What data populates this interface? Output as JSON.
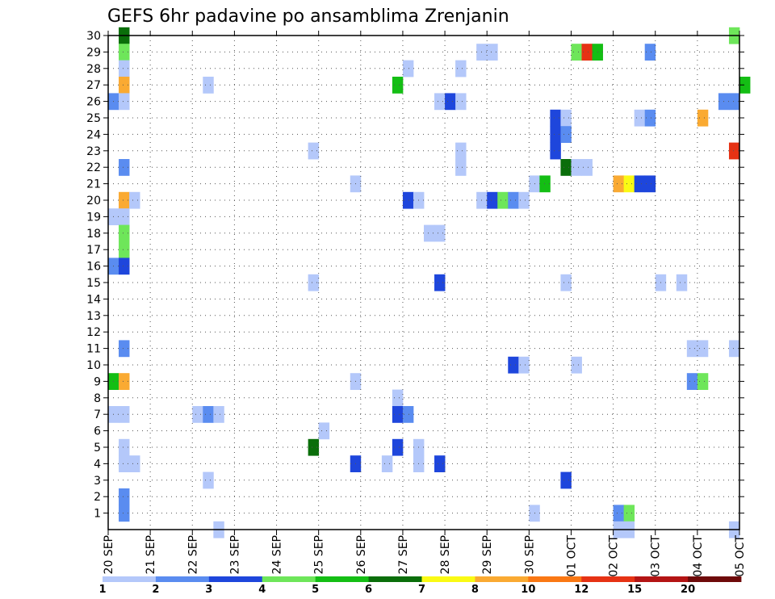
{
  "chart_data": {
    "type": "heatmap",
    "title": "GEFS 6hr padavine po ansamblima Zrenjanin",
    "x_tick_labels": [
      "20 SEP",
      "21 SEP",
      "22 SEP",
      "23 SEP",
      "24 SEP",
      "25 SEP",
      "26 SEP",
      "27 SEP",
      "28 SEP",
      "29 SEP",
      "30 SEP",
      "01 OCT",
      "02 OCT",
      "03 OCT",
      "04 OCT",
      "05 OCT"
    ],
    "x_range": [
      "20 SEP 00z",
      "05 OCT 00z"
    ],
    "x_step_hours": 6,
    "y_tick_labels": [
      "1",
      "2",
      "3",
      "4",
      "5",
      "6",
      "7",
      "8",
      "9",
      "10",
      "11",
      "12",
      "13",
      "14",
      "15",
      "16",
      "17",
      "18",
      "19",
      "20",
      "21",
      "22",
      "23",
      "24",
      "25",
      "26",
      "27",
      "28",
      "29",
      "30"
    ],
    "y_range": [
      0,
      30
    ],
    "grid": true,
    "colorbar": {
      "labels": [
        "1",
        "2",
        "3",
        "4",
        "5",
        "6",
        "7",
        "8",
        "10",
        "12",
        "15",
        "20"
      ],
      "colors": [
        "#b4c8fa",
        "#5a8cf0",
        "#1e46dc",
        "#6ee65a",
        "#14be14",
        "#0a6e0a",
        "#fafa14",
        "#faaa32",
        "#fa7814",
        "#e63214",
        "#b41414",
        "#6e0a0a"
      ]
    },
    "colors": {
      "cells": [
        "#b4c8fa",
        "#5a8cf0",
        "#1e46dc",
        "#6ee65a",
        "#14be14",
        "#0a6e0a",
        "#fafa14",
        "#faaa32",
        "#fa7814",
        "#e63214"
      ]
    },
    "cells": [
      {
        "t": 1,
        "m": 30,
        "c": 6
      },
      {
        "t": 1,
        "m": 29,
        "c": 4
      },
      {
        "t": 1,
        "m": 28,
        "c": 1
      },
      {
        "t": 1,
        "m": 27,
        "c": 8
      },
      {
        "t": 0,
        "m": 26,
        "c": 2
      },
      {
        "t": 1,
        "m": 26,
        "c": 1
      },
      {
        "t": 1,
        "m": 22,
        "c": 2
      },
      {
        "t": 1,
        "m": 20,
        "c": 8
      },
      {
        "t": 2,
        "m": 20,
        "c": 1
      },
      {
        "t": 0,
        "m": 19,
        "c": 1
      },
      {
        "t": 1,
        "m": 19,
        "c": 1
      },
      {
        "t": 1,
        "m": 18,
        "c": 4
      },
      {
        "t": 1,
        "m": 17,
        "c": 4
      },
      {
        "t": 0,
        "m": 16,
        "c": 2
      },
      {
        "t": 1,
        "m": 16,
        "c": 3
      },
      {
        "t": 1,
        "m": 11,
        "c": 2
      },
      {
        "t": 0,
        "m": 9,
        "c": 5
      },
      {
        "t": 1,
        "m": 9,
        "c": 8
      },
      {
        "t": 0,
        "m": 7,
        "c": 1
      },
      {
        "t": 1,
        "m": 7,
        "c": 1
      },
      {
        "t": 1,
        "m": 5,
        "c": 1
      },
      {
        "t": 1,
        "m": 4,
        "c": 1
      },
      {
        "t": 2,
        "m": 4,
        "c": 1
      },
      {
        "t": 1,
        "m": 2,
        "c": 2
      },
      {
        "t": 1,
        "m": 1,
        "c": 2
      },
      {
        "t": 9,
        "m": 27,
        "c": 1
      },
      {
        "t": 8,
        "m": 7,
        "c": 1
      },
      {
        "t": 9,
        "m": 7,
        "c": 2
      },
      {
        "t": 10,
        "m": 7,
        "c": 1
      },
      {
        "t": 9,
        "m": 3,
        "c": 1
      },
      {
        "t": 10,
        "m": 0,
        "c": 1
      },
      {
        "t": 19,
        "m": 5,
        "c": 6
      },
      {
        "t": 19,
        "m": 23,
        "c": 1
      },
      {
        "t": 19,
        "m": 15,
        "c": 1
      },
      {
        "t": 20,
        "m": 6,
        "c": 1
      },
      {
        "t": 23,
        "m": 21,
        "c": 1
      },
      {
        "t": 23,
        "m": 4,
        "c": 3
      },
      {
        "t": 23,
        "m": 9,
        "c": 1
      },
      {
        "t": 26,
        "m": 4,
        "c": 1
      },
      {
        "t": 27,
        "m": 27,
        "c": 5
      },
      {
        "t": 27,
        "m": 8,
        "c": 1
      },
      {
        "t": 27,
        "m": 5,
        "c": 3
      },
      {
        "t": 27,
        "m": 7,
        "c": 3
      },
      {
        "t": 28,
        "m": 7,
        "c": 2
      },
      {
        "t": 28,
        "m": 28,
        "c": 1
      },
      {
        "t": 28,
        "m": 20,
        "c": 3
      },
      {
        "t": 29,
        "m": 20,
        "c": 1
      },
      {
        "t": 29,
        "m": 5,
        "c": 1
      },
      {
        "t": 29,
        "m": 4,
        "c": 1
      },
      {
        "t": 30,
        "m": 18,
        "c": 1
      },
      {
        "t": 31,
        "m": 18,
        "c": 1
      },
      {
        "t": 31,
        "m": 26,
        "c": 1
      },
      {
        "t": 32,
        "m": 26,
        "c": 3
      },
      {
        "t": 33,
        "m": 26,
        "c": 1
      },
      {
        "t": 31,
        "m": 15,
        "c": 3
      },
      {
        "t": 31,
        "m": 4,
        "c": 3
      },
      {
        "t": 33,
        "m": 28,
        "c": 1
      },
      {
        "t": 33,
        "m": 23,
        "c": 1
      },
      {
        "t": 33,
        "m": 22,
        "c": 1
      },
      {
        "t": 35,
        "m": 29,
        "c": 1
      },
      {
        "t": 36,
        "m": 29,
        "c": 1
      },
      {
        "t": 35,
        "m": 20,
        "c": 1
      },
      {
        "t": 36,
        "m": 20,
        "c": 3
      },
      {
        "t": 37,
        "m": 20,
        "c": 4
      },
      {
        "t": 38,
        "m": 20,
        "c": 2
      },
      {
        "t": 39,
        "m": 20,
        "c": 1
      },
      {
        "t": 38,
        "m": 10,
        "c": 3
      },
      {
        "t": 39,
        "m": 10,
        "c": 1
      },
      {
        "t": 40,
        "m": 1,
        "c": 1
      },
      {
        "t": 40,
        "m": 21,
        "c": 1
      },
      {
        "t": 41,
        "m": 21,
        "c": 5
      },
      {
        "t": 42,
        "m": 25,
        "c": 3
      },
      {
        "t": 42,
        "m": 24,
        "c": 3
      },
      {
        "t": 42,
        "m": 23,
        "c": 3
      },
      {
        "t": 43,
        "m": 25,
        "c": 1
      },
      {
        "t": 43,
        "m": 24,
        "c": 2
      },
      {
        "t": 43,
        "m": 22,
        "c": 6
      },
      {
        "t": 43,
        "m": 15,
        "c": 1
      },
      {
        "t": 43,
        "m": 3,
        "c": 3
      },
      {
        "t": 44,
        "m": 29,
        "c": 4
      },
      {
        "t": 44,
        "m": 22,
        "c": 1
      },
      {
        "t": 44,
        "m": 10,
        "c": 1
      },
      {
        "t": 45,
        "m": 29,
        "c": 10
      },
      {
        "t": 45,
        "m": 22,
        "c": 1
      },
      {
        "t": 46,
        "m": 29,
        "c": 5
      },
      {
        "t": 48,
        "m": 21,
        "c": 8
      },
      {
        "t": 48,
        "m": 1,
        "c": 2
      },
      {
        "t": 48,
        "m": 0,
        "c": 1
      },
      {
        "t": 49,
        "m": 21,
        "c": 7
      },
      {
        "t": 49,
        "m": 1,
        "c": 4
      },
      {
        "t": 49,
        "m": 0,
        "c": 1
      },
      {
        "t": 50,
        "m": 25,
        "c": 1
      },
      {
        "t": 50,
        "m": 21,
        "c": 3
      },
      {
        "t": 51,
        "m": 29,
        "c": 2
      },
      {
        "t": 51,
        "m": 25,
        "c": 2
      },
      {
        "t": 51,
        "m": 21,
        "c": 3
      },
      {
        "t": 52,
        "m": 15,
        "c": 1
      },
      {
        "t": 54,
        "m": 15,
        "c": 1
      },
      {
        "t": 55,
        "m": 9,
        "c": 2
      },
      {
        "t": 56,
        "m": 25,
        "c": 8
      },
      {
        "t": 55,
        "m": 11,
        "c": 1
      },
      {
        "t": 56,
        "m": 11,
        "c": 1
      },
      {
        "t": 56,
        "m": 9,
        "c": 4
      },
      {
        "t": 58,
        "m": 26,
        "c": 2
      },
      {
        "t": 59,
        "m": 26,
        "c": 2
      },
      {
        "t": 59,
        "m": 30,
        "c": 4
      },
      {
        "t": 59,
        "m": 23,
        "c": 10
      },
      {
        "t": 59,
        "m": 11,
        "c": 1
      },
      {
        "t": 59,
        "m": 0,
        "c": 1
      },
      {
        "t": 60,
        "m": 27,
        "c": 5
      }
    ]
  }
}
